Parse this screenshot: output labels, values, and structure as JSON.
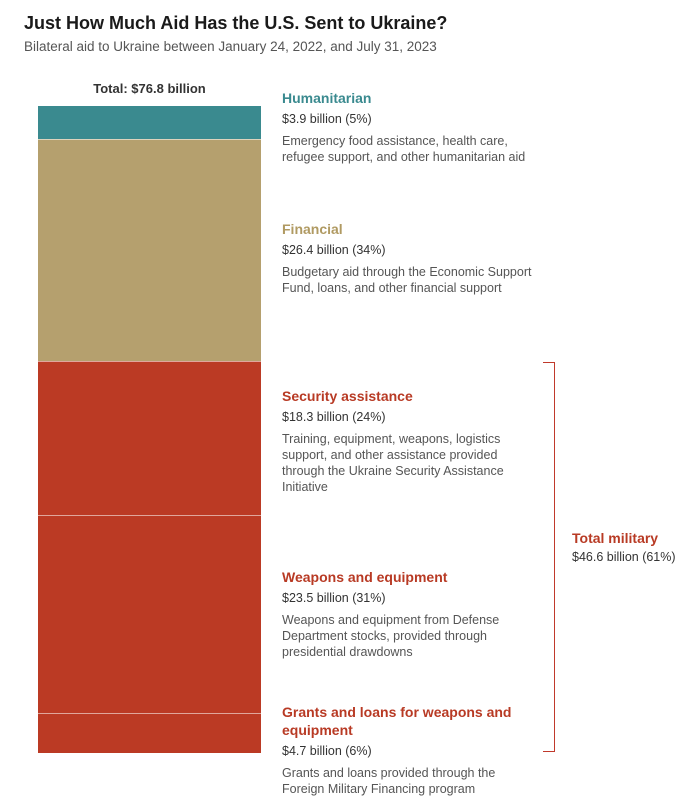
{
  "title": "Just How Much Aid Has the U.S. Sent to Ukraine?",
  "subtitle": "Bilateral aid to Ukraine between January 24, 2022, and July 31, 2023",
  "total_label": "Total: $76.8 billion",
  "colors": {
    "humanitarian": "#3a8a8f",
    "financial": "#b5a06e",
    "military": "#bb3a24"
  },
  "chart_data": {
    "type": "bar",
    "stacked": true,
    "unit": "billion USD",
    "total": 76.8,
    "categories": [
      "Humanitarian",
      "Financial",
      "Security assistance",
      "Weapons and equipment",
      "Grants and loans for weapons and equipment"
    ],
    "values": [
      3.9,
      26.4,
      18.3,
      23.5,
      4.7
    ],
    "segments": [
      {
        "name": "Humanitarian",
        "value": 3.9,
        "value_label": "$3.9 billion (5%)",
        "color": "#3a8a8f",
        "description": "Emergency food assistance, health care, refugee support, and other humanitarian aid"
      },
      {
        "name": "Financial",
        "value": 26.4,
        "value_label": "$26.4 billion (34%)",
        "color": "#b5a06e",
        "description": "Budgetary aid through the Economic Support Fund, loans, and other financial support"
      },
      {
        "name": "Security assistance",
        "value": 18.3,
        "value_label": "$18.3 billion (24%)",
        "color": "#bb3a24",
        "description": "Training, equipment, weapons, logistics support, and other assistance provided through the Ukraine Security Assistance Initiative"
      },
      {
        "name": "Weapons and equipment",
        "value": 23.5,
        "value_label": "$23.5 billion (31%)",
        "color": "#bb3a24",
        "description": "Weapons and equipment from Defense Department stocks, provided through presidential drawdowns"
      },
      {
        "name": "Grants and loans for weapons and equipment",
        "value": 4.7,
        "value_label": "$4.7 billion (6%)",
        "color": "#bb3a24",
        "description": "Grants and loans provided through the Foreign Military Financing program"
      }
    ],
    "group": {
      "name": "Total military",
      "value": 46.6,
      "value_label": "$46.6 billion (61%)"
    }
  }
}
